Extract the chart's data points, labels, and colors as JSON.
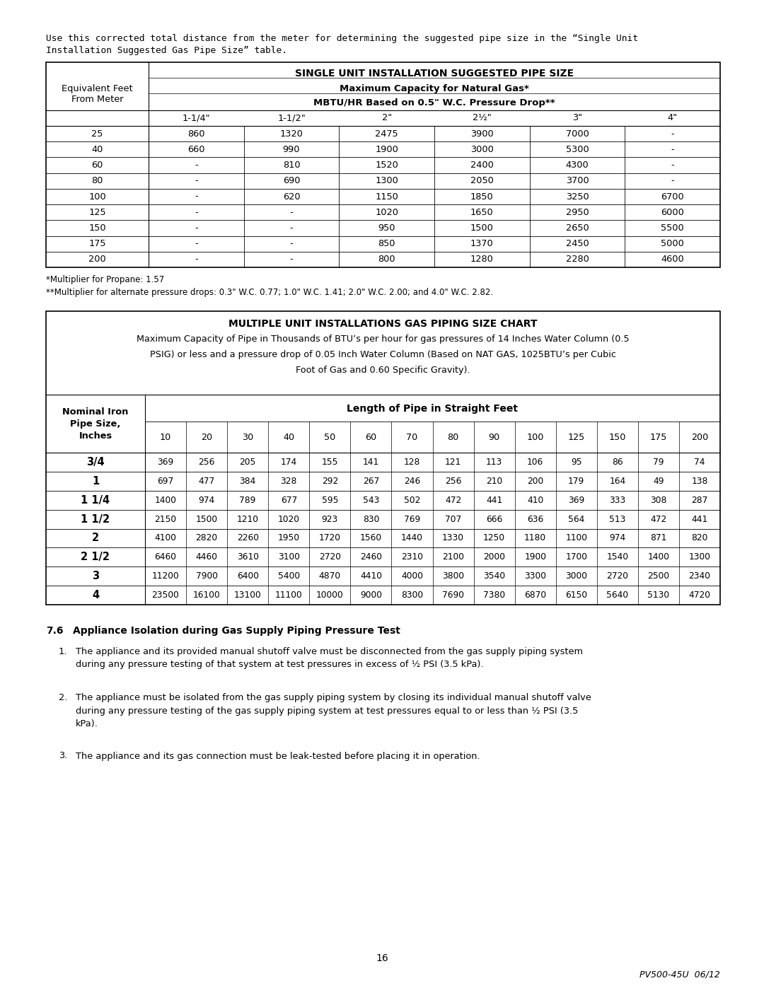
{
  "intro_text_line1": "Use this corrected total distance from the meter for determining the suggested pipe size in the “Single Unit",
  "intro_text_line2": "Installation Suggested Gas Pipe Size” table.",
  "table1_title_line1": "SINGLE UNIT INSTALLATION SUGGESTED PIPE SIZE",
  "table1_title_line2": "Maximum Capacity for Natural Gas*",
  "table1_title_line3": "MBTU/HR Based on 0.5\" W.C. Pressure Drop**",
  "table1_col_header_left": "Equivalent Feet\nFrom Meter",
  "table1_col_headers": [
    "1-1/4\"",
    "1-1/2\"",
    "2\"",
    "2½\"",
    "3\"",
    "4\""
  ],
  "table1_rows": [
    [
      "25",
      "860",
      "1320",
      "2475",
      "3900",
      "7000",
      "-"
    ],
    [
      "40",
      "660",
      "990",
      "1900",
      "3000",
      "5300",
      "-"
    ],
    [
      "60",
      "-",
      "810",
      "1520",
      "2400",
      "4300",
      "-"
    ],
    [
      "80",
      "-",
      "690",
      "1300",
      "2050",
      "3700",
      "-"
    ],
    [
      "100",
      "-",
      "620",
      "1150",
      "1850",
      "3250",
      "6700"
    ],
    [
      "125",
      "-",
      "-",
      "1020",
      "1650",
      "2950",
      "6000"
    ],
    [
      "150",
      "-",
      "-",
      "950",
      "1500",
      "2650",
      "5500"
    ],
    [
      "175",
      "-",
      "-",
      "850",
      "1370",
      "2450",
      "5000"
    ],
    [
      "200",
      "-",
      "-",
      "800",
      "1280",
      "2280",
      "4600"
    ]
  ],
  "table1_footnote1": "*Multiplier for Propane: 1.57",
  "table1_footnote2": "**Multiplier for alternate pressure drops: 0.3\" W.C. 0.77; 1.0\" W.C. 1.41; 2.0\" W.C. 2.00; and 4.0\" W.C. 2.82.",
  "table2_title_line1": "MULTIPLE UNIT INSTALLATIONS GAS PIPING SIZE CHART",
  "table2_subtitle": "Maximum Capacity of Pipe in Thousands of BTU’s per hour for gas pressures of 14 Inches Water Column (0.5\nPSIG) or less and a pressure drop of 0.05 Inch Water Column (Based on NAT GAS, 1025BTU’s per Cubic\nFoot of Gas and 0.60 Specific Gravity).",
  "table2_col_header_left": "Nominal Iron\nPipe Size,\nInches",
  "table2_col_header_right": "Length of Pipe in Straight Feet",
  "table2_col_lengths": [
    "10",
    "20",
    "30",
    "40",
    "50",
    "60",
    "70",
    "80",
    "90",
    "100",
    "125",
    "150",
    "175",
    "200"
  ],
  "table2_rows": [
    [
      "3/4",
      "369",
      "256",
      "205",
      "174",
      "155",
      "141",
      "128",
      "121",
      "113",
      "106",
      "95",
      "86",
      "79",
      "74"
    ],
    [
      "1",
      "697",
      "477",
      "384",
      "328",
      "292",
      "267",
      "246",
      "256",
      "210",
      "200",
      "179",
      "164",
      "49",
      "138"
    ],
    [
      "1 1/4",
      "1400",
      "974",
      "789",
      "677",
      "595",
      "543",
      "502",
      "472",
      "441",
      "410",
      "369",
      "333",
      "308",
      "287"
    ],
    [
      "1 1/2",
      "2150",
      "1500",
      "1210",
      "1020",
      "923",
      "830",
      "769",
      "707",
      "666",
      "636",
      "564",
      "513",
      "472",
      "441"
    ],
    [
      "2",
      "4100",
      "2820",
      "2260",
      "1950",
      "1720",
      "1560",
      "1440",
      "1330",
      "1250",
      "1180",
      "1100",
      "974",
      "871",
      "820"
    ],
    [
      "2 1/2",
      "6460",
      "4460",
      "3610",
      "3100",
      "2720",
      "2460",
      "2310",
      "2100",
      "2000",
      "1900",
      "1700",
      "1540",
      "1400",
      "1300"
    ],
    [
      "3",
      "11200",
      "7900",
      "6400",
      "5400",
      "4870",
      "4410",
      "4000",
      "3800",
      "3540",
      "3300",
      "3000",
      "2720",
      "2500",
      "2340"
    ],
    [
      "4",
      "23500",
      "16100",
      "13100",
      "11100",
      "10000",
      "9000",
      "8300",
      "7690",
      "7380",
      "6870",
      "6150",
      "5640",
      "5130",
      "4720"
    ]
  ],
  "section_title_num": "7.6",
  "section_title_text": "Appliance Isolation during Gas Supply Piping Pressure Test",
  "section_items": [
    "The appliance and its provided manual shutoff valve must be disconnected from the gas supply piping system\nduring any pressure testing of that system at test pressures in excess of ½ PSI (3.5 kPa).",
    "The appliance must be isolated from the gas supply piping system by closing its individual manual shutoff valve\nduring any pressure testing of the gas supply piping system at test pressures equal to or less than ½ PSI (3.5\nkPa).",
    "The appliance and its gas connection must be leak-tested before placing it in operation."
  ],
  "page_number": "16",
  "footer_right": "PV500-45U  06/12",
  "bg_color": "#ffffff",
  "text_color": "#000000"
}
